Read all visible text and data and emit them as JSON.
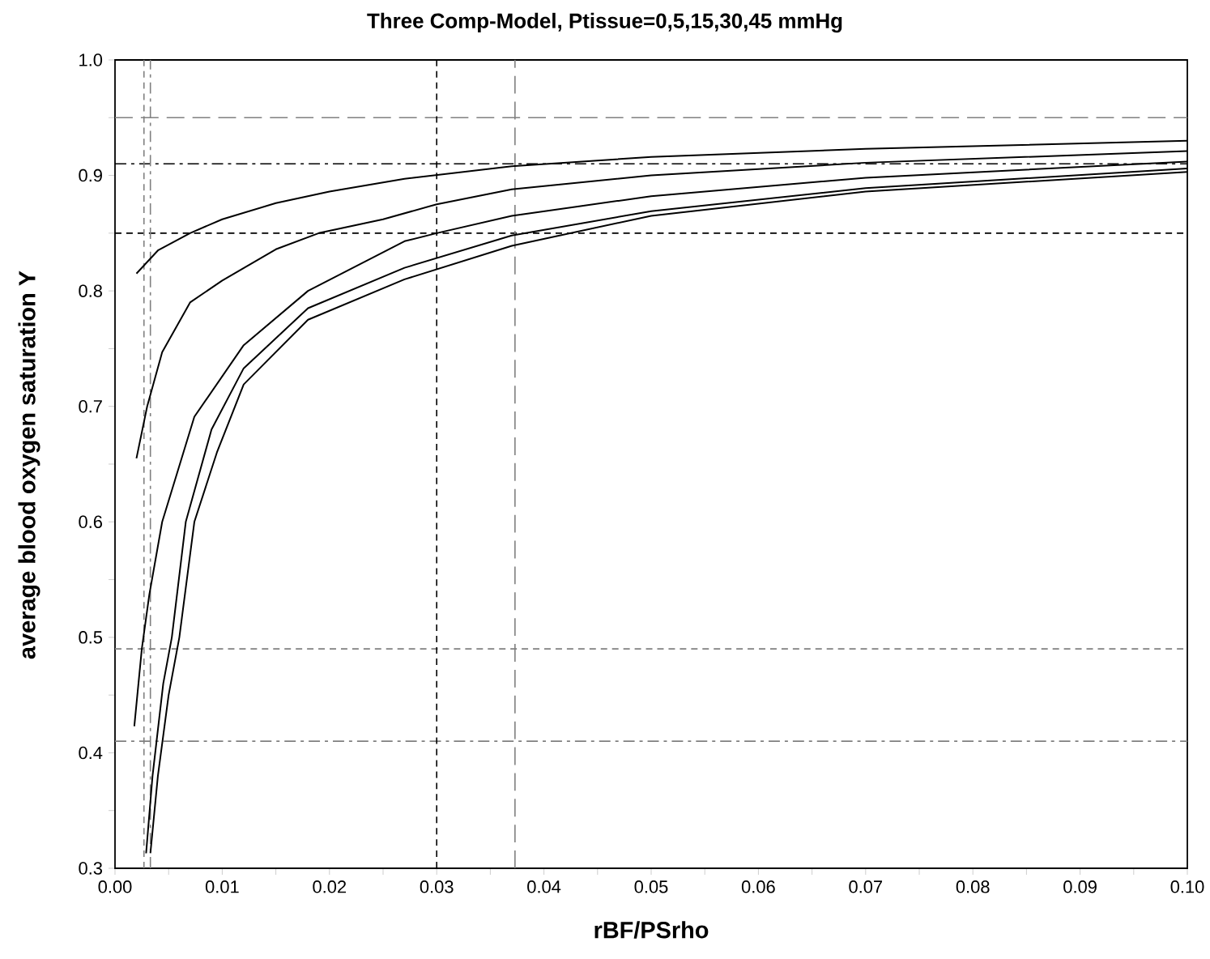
{
  "chart_data": {
    "type": "line",
    "title": "Three Comp-Model, Ptissue=0,5,15,30,45 mmHg",
    "xlabel": "rBF/PSrho",
    "ylabel": "average blood oxygen saturation Y",
    "xlim": [
      0,
      0.1
    ],
    "ylim": [
      0.3,
      1.0
    ],
    "xticks": [
      {
        "value": 0,
        "label": "0.00"
      },
      {
        "value": 0.005,
        "label": null
      },
      {
        "value": 0.01,
        "label": "0.01"
      },
      {
        "value": 0.015,
        "label": null
      },
      {
        "value": 0.02,
        "label": "0.02"
      },
      {
        "value": 0.025,
        "label": null
      },
      {
        "value": 0.03,
        "label": "0.03"
      },
      {
        "value": 0.035,
        "label": null
      },
      {
        "value": 0.04,
        "label": "0.04"
      },
      {
        "value": 0.045,
        "label": null
      },
      {
        "value": 0.05,
        "label": "0.05"
      },
      {
        "value": 0.055,
        "label": null
      },
      {
        "value": 0.06,
        "label": "0.06"
      },
      {
        "value": 0.065,
        "label": null
      },
      {
        "value": 0.07,
        "label": "0.07"
      },
      {
        "value": 0.075,
        "label": null
      },
      {
        "value": 0.08,
        "label": "0.08"
      },
      {
        "value": 0.085,
        "label": null
      },
      {
        "value": 0.09,
        "label": "0.09"
      },
      {
        "value": 0.095,
        "label": null
      },
      {
        "value": 0.1,
        "label": "0.10"
      }
    ],
    "yticks": [
      {
        "value": 0.3,
        "label": "0.3"
      },
      {
        "value": 0.35,
        "label": null
      },
      {
        "value": 0.4,
        "label": "0.4"
      },
      {
        "value": 0.45,
        "label": null
      },
      {
        "value": 0.5,
        "label": "0.5"
      },
      {
        "value": 0.55,
        "label": null
      },
      {
        "value": 0.6,
        "label": "0.6"
      },
      {
        "value": 0.65,
        "label": null
      },
      {
        "value": 0.7,
        "label": "0.7"
      },
      {
        "value": 0.75,
        "label": null
      },
      {
        "value": 0.8,
        "label": "0.8"
      },
      {
        "value": 0.85,
        "label": null
      },
      {
        "value": 0.9,
        "label": "0.9"
      },
      {
        "value": 0.95,
        "label": null
      },
      {
        "value": 1.0,
        "label": "1.0"
      }
    ],
    "marker": "none",
    "line_style": "solid",
    "series": [
      {
        "color": "#000000",
        "x": [
          0.002,
          0.004,
          0.007,
          0.01,
          0.015,
          0.02,
          0.027,
          0.037,
          0.05,
          0.07,
          0.1
        ],
        "values": [
          0.815,
          0.835,
          0.85,
          0.862,
          0.876,
          0.886,
          0.897,
          0.908,
          0.916,
          0.923,
          0.93
        ]
      },
      {
        "color": "#000000",
        "x": [
          0.002,
          0.003,
          0.0044,
          0.007,
          0.01,
          0.015,
          0.019,
          0.025,
          0.03,
          0.037,
          0.05,
          0.07,
          0.1
        ],
        "values": [
          0.655,
          0.7,
          0.747,
          0.79,
          0.809,
          0.836,
          0.85,
          0.862,
          0.875,
          0.888,
          0.9,
          0.911,
          0.921
        ]
      },
      {
        "color": "#000000",
        "x": [
          0.0018,
          0.0025,
          0.0032,
          0.0044,
          0.0074,
          0.012,
          0.018,
          0.027,
          0.03,
          0.037,
          0.05,
          0.07,
          0.1
        ],
        "values": [
          0.423,
          0.49,
          0.537,
          0.6,
          0.691,
          0.753,
          0.8,
          0.843,
          0.85,
          0.865,
          0.882,
          0.898,
          0.912
        ]
      },
      {
        "color": "#000000",
        "x": [
          0.0029,
          0.0035,
          0.0045,
          0.0053,
          0.0066,
          0.009,
          0.012,
          0.018,
          0.027,
          0.037,
          0.05,
          0.07,
          0.1
        ],
        "values": [
          0.313,
          0.38,
          0.46,
          0.5,
          0.6,
          0.68,
          0.733,
          0.785,
          0.82,
          0.848,
          0.869,
          0.889,
          0.906
        ]
      },
      {
        "color": "#000000",
        "x": [
          0.0033,
          0.004,
          0.005,
          0.006,
          0.0074,
          0.0095,
          0.012,
          0.018,
          0.027,
          0.037,
          0.05,
          0.07,
          0.1
        ],
        "values": [
          0.313,
          0.38,
          0.45,
          0.5,
          0.6,
          0.66,
          0.719,
          0.775,
          0.81,
          0.839,
          0.865,
          0.886,
          0.903
        ]
      }
    ],
    "ref_lines": [
      {
        "axis": "y",
        "value": 0.95,
        "color": "#808080",
        "line_style": "longdash"
      },
      {
        "axis": "y",
        "value": 0.91,
        "color": "#000000",
        "line_style": "dashdot"
      },
      {
        "axis": "y",
        "value": 0.85,
        "color": "#000000",
        "line_style": "dashed"
      },
      {
        "axis": "y",
        "value": 0.49,
        "color": "#808080",
        "line_style": "dashed"
      },
      {
        "axis": "y",
        "value": 0.41,
        "color": "#808080",
        "line_style": "dashdot"
      },
      {
        "axis": "x",
        "value": 0.0027,
        "color": "#808080",
        "line_style": "dashed"
      },
      {
        "axis": "x",
        "value": 0.0033,
        "color": "#808080",
        "line_style": "dashdot"
      },
      {
        "axis": "x",
        "value": 0.03,
        "color": "#000000",
        "line_style": "dashed"
      },
      {
        "axis": "x",
        "value": 0.0373,
        "color": "#808080",
        "line_style": "longdash"
      }
    ]
  }
}
